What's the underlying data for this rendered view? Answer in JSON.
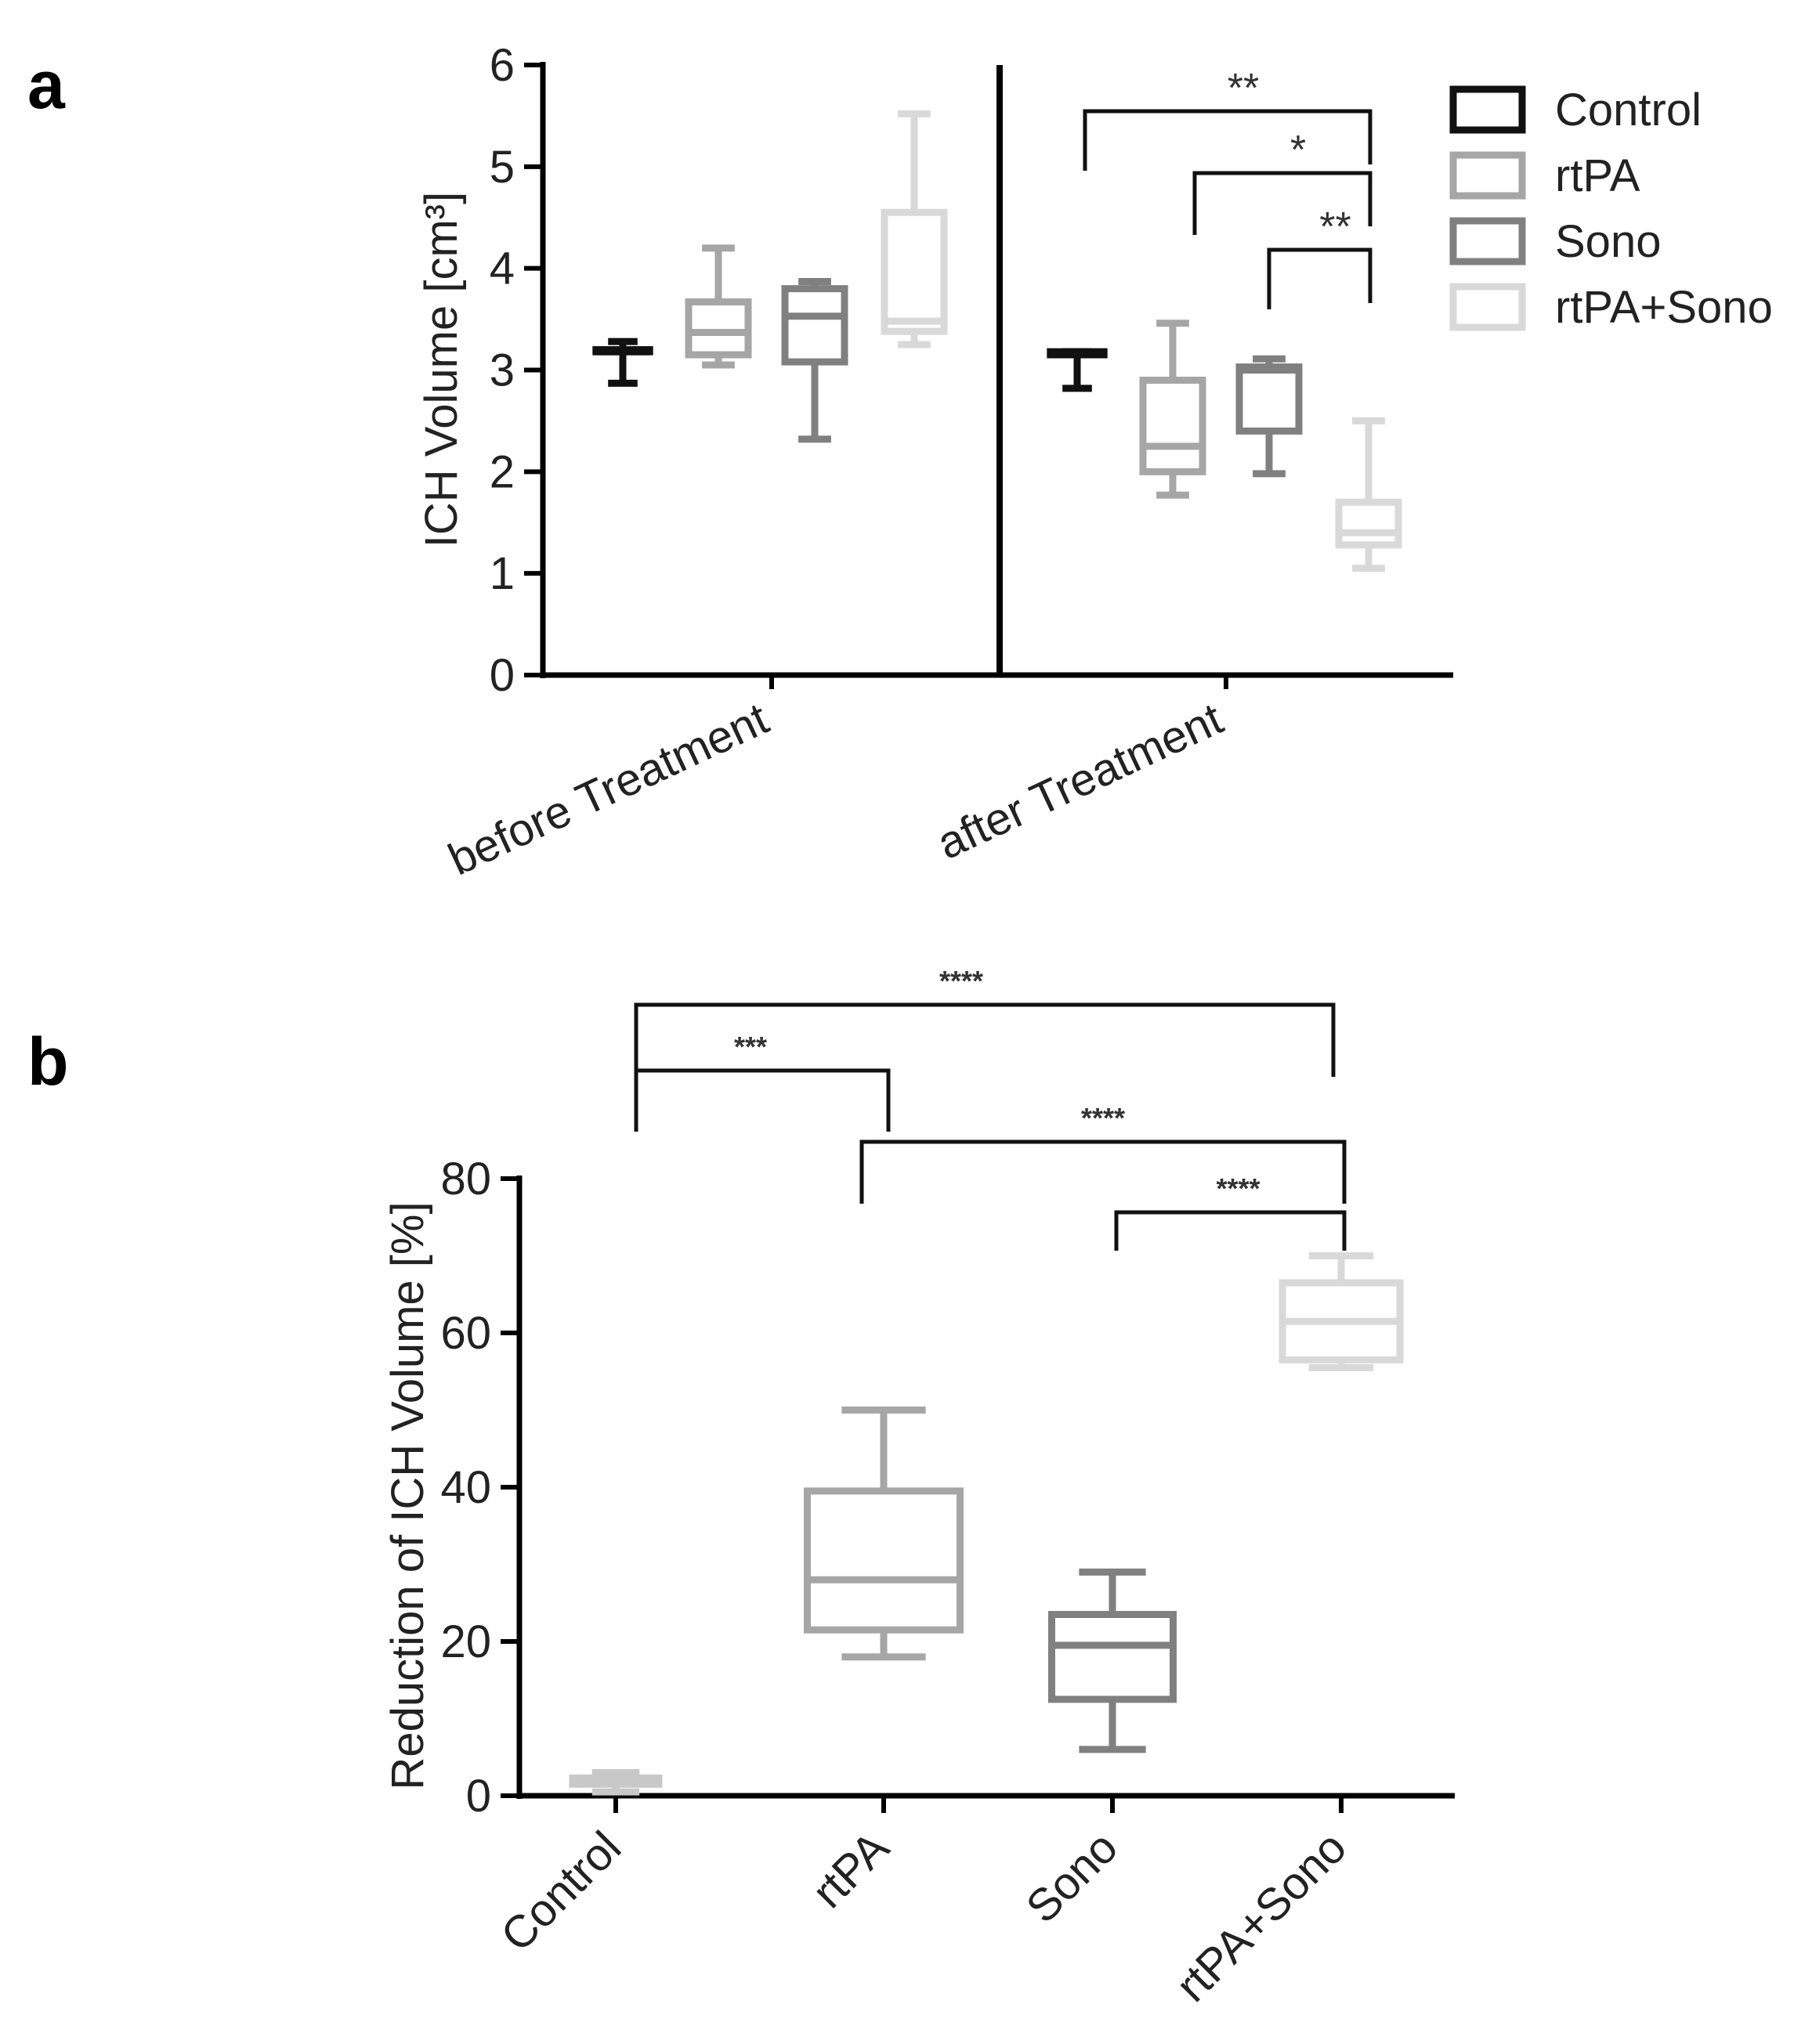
{
  "chart_data": [
    {
      "panel": "a",
      "type": "box",
      "ylabel": "ICH Volume [cm³]",
      "ylim": [
        0,
        6
      ],
      "yticks": [
        0,
        1,
        2,
        3,
        4,
        5,
        6
      ],
      "categories": [
        "before Treatment",
        "after Treatment"
      ],
      "legend": {
        "position": "top-right",
        "entries": [
          {
            "name": "Control",
            "color": "#111111"
          },
          {
            "name": "rtPA",
            "color": "#a6a6a6"
          },
          {
            "name": "Sono",
            "color": "#808080"
          },
          {
            "name": "rtPA+Sono",
            "color": "#d9d9d9"
          }
        ]
      },
      "series": [
        {
          "name": "Control",
          "color": "#111111",
          "boxes": [
            {
              "min": 2.87,
              "q1": 3.18,
              "median": 3.18,
              "q3": 3.2,
              "max": 3.28
            },
            {
              "min": 2.82,
              "q1": 3.15,
              "median": 3.16,
              "q3": 3.18,
              "max": 3.18
            }
          ]
        },
        {
          "name": "rtPA",
          "color": "#a6a6a6",
          "boxes": [
            {
              "min": 3.05,
              "q1": 3.15,
              "median": 3.37,
              "q3": 3.67,
              "max": 4.2
            },
            {
              "min": 1.77,
              "q1": 2.0,
              "median": 2.25,
              "q3": 2.9,
              "max": 3.46
            }
          ]
        },
        {
          "name": "Sono",
          "color": "#808080",
          "boxes": [
            {
              "min": 2.32,
              "q1": 3.08,
              "median": 3.53,
              "q3": 3.8,
              "max": 3.87
            },
            {
              "min": 1.98,
              "q1": 2.4,
              "median": 3.0,
              "q3": 3.03,
              "max": 3.11
            }
          ]
        },
        {
          "name": "rtPA+Sono",
          "color": "#d9d9d9",
          "boxes": [
            {
              "min": 3.25,
              "q1": 3.38,
              "median": 3.48,
              "q3": 4.55,
              "max": 5.52
            },
            {
              "min": 1.05,
              "q1": 1.28,
              "median": 1.4,
              "q3": 1.7,
              "max": 2.5
            }
          ]
        }
      ],
      "significance": [
        {
          "from": "Control",
          "to": "rtPA+Sono",
          "category": "after Treatment",
          "label": "**"
        },
        {
          "from": "rtPA",
          "to": "rtPA+Sono",
          "category": "after Treatment",
          "label": "*"
        },
        {
          "from": "Sono",
          "to": "rtPA+Sono",
          "category": "after Treatment",
          "label": "**"
        }
      ]
    },
    {
      "panel": "b",
      "type": "box",
      "ylabel": "Reduction of ICH Volume [%]",
      "ylim": [
        0,
        80
      ],
      "yticks": [
        0,
        20,
        40,
        60,
        80
      ],
      "categories": [
        "Control",
        "rtPA",
        "Sono",
        "rtPA+Sono"
      ],
      "series": [
        {
          "name": "Control",
          "color": "#c8c8c8",
          "box": {
            "min": 0.5,
            "q1": 1.5,
            "median": 2.0,
            "q3": 2.3,
            "max": 3.0
          }
        },
        {
          "name": "rtPA",
          "color": "#a6a6a6",
          "box": {
            "min": 18.0,
            "q1": 21.5,
            "median": 28.0,
            "q3": 39.5,
            "max": 50.0
          }
        },
        {
          "name": "Sono",
          "color": "#808080",
          "box": {
            "min": 6.0,
            "q1": 12.5,
            "median": 19.5,
            "q3": 23.5,
            "max": 29.0
          }
        },
        {
          "name": "rtPA+Sono",
          "color": "#d9d9d9",
          "box": {
            "min": 55.5,
            "q1": 56.5,
            "median": 61.5,
            "q3": 66.5,
            "max": 70.0
          }
        }
      ],
      "significance": [
        {
          "from": "Control",
          "to": "rtPA+Sono",
          "label": "****"
        },
        {
          "from": "Control",
          "to": "rtPA",
          "label": "***"
        },
        {
          "from": "rtPA",
          "to": "rtPA+Sono",
          "label": "****"
        },
        {
          "from": "Sono",
          "to": "rtPA+Sono",
          "label": "****"
        }
      ]
    }
  ]
}
